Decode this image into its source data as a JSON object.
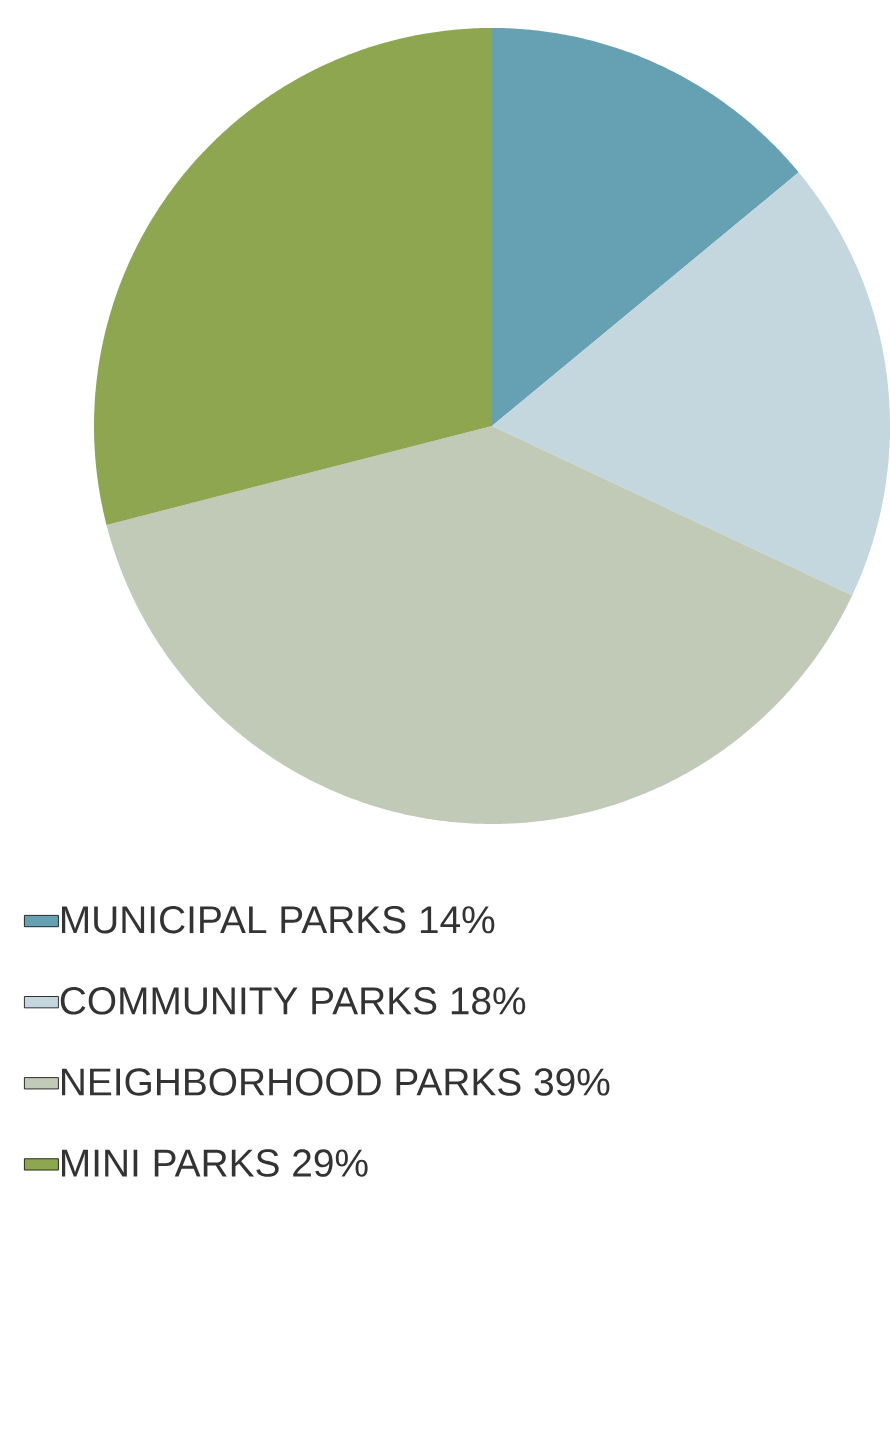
{
  "chart_data": {
    "type": "pie",
    "categories": [
      "MUNICIPAL PARKS",
      "COMMUNITY PARKS",
      "NEIGHBORHOOD PARKS",
      "MINI PARKS"
    ],
    "values": [
      14,
      18,
      39,
      29
    ],
    "value_labels": [
      "14%",
      "18%",
      "39%",
      "29%"
    ],
    "colors": [
      "#66a0b3",
      "#c4d6de",
      "#c1c9b7",
      "#8fa650"
    ],
    "legend": "bottom"
  }
}
